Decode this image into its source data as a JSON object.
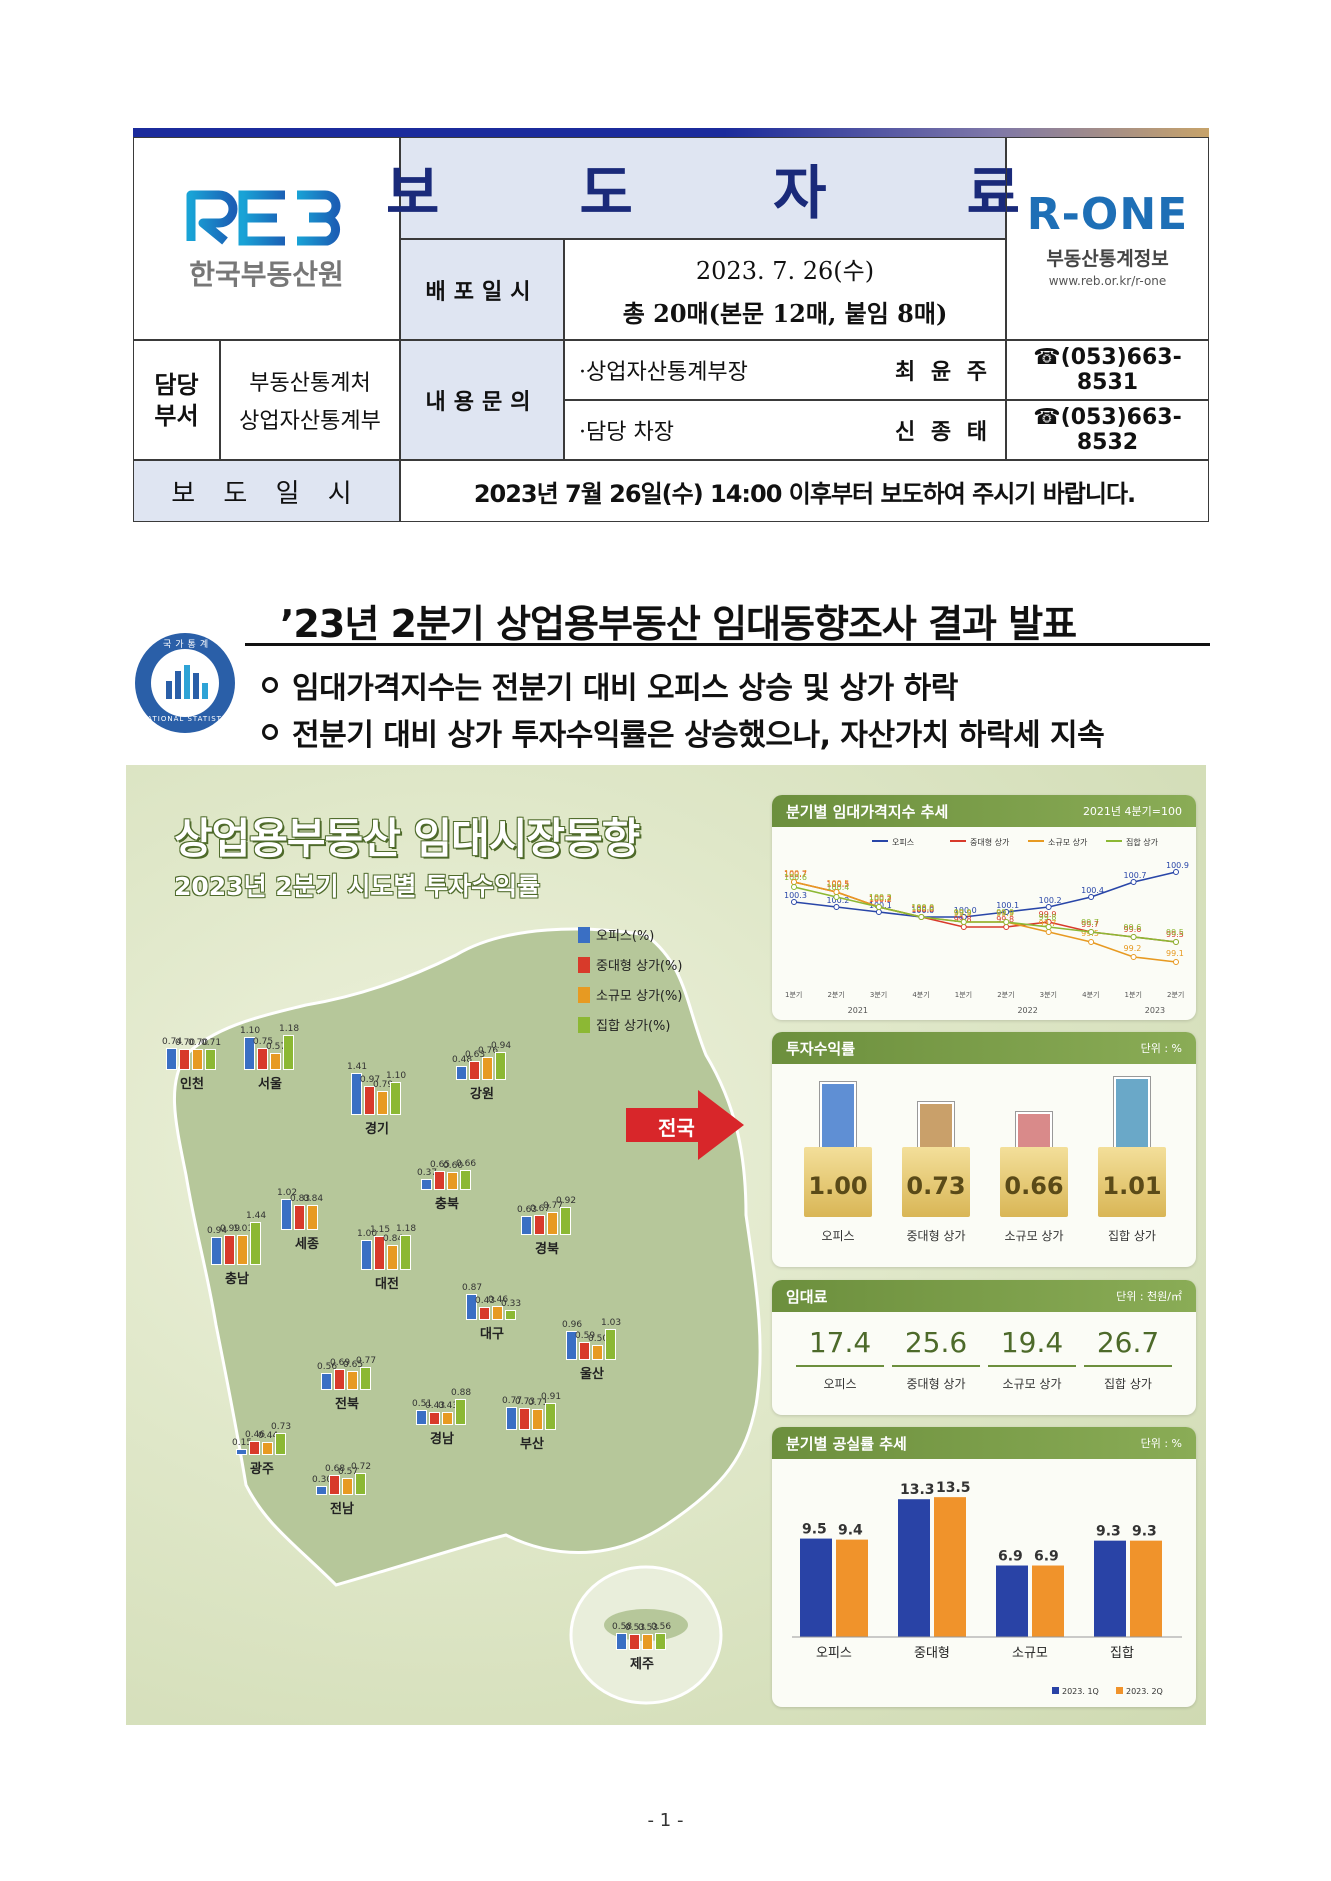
{
  "header": {
    "org_name": "한국부동산원",
    "logo_text": "REB",
    "doc_title": "보 도 자 료",
    "rone_brand": "R-ONE",
    "rone_name": "부동산통계정보",
    "rone_url": "www.reb.or.kr/r-one",
    "distribution_label": "배포일시",
    "distribution_date": "2023. 7. 26(수)",
    "distribution_pages": "총 20매(본문 12매, 붙임 8매)",
    "dept_label": "담당\n부서",
    "dept_name_1": "부동산통계처",
    "dept_name_2": "상업자산통계부",
    "inquiry_label": "내용문의",
    "contacts": [
      {
        "role": "·상업자산통계부장",
        "name": "최 윤 주",
        "phone": "☎(053)663-8531"
      },
      {
        "role": "·담당 차장",
        "name": "신 종 태",
        "phone": "☎(053)663-8532"
      }
    ],
    "release_label": "보 도 일 시",
    "release_text": "2023년 7월 26일(수) 14:00 이후부터 보도하여 주시기 바랍니다."
  },
  "headline": {
    "title": "’23년 2분기 상업용부동산 임대동향조사 결과 발표",
    "bullet_1": "임대가격지수는 전분기 대비 오피스 상승 및 상가 하락",
    "bullet_2": "전분기 대비 상가 투자수익률은 상승했으나, 자산가치 하락세 지속",
    "seal_text_top": "국가통계",
    "seal_text_bottom": "NATIONAL STATISTICS"
  },
  "infographic": {
    "main_title": "상업용부동산 임대시장동향",
    "sub_title": "2023년 2분기 시도별 투자수익률",
    "legend": [
      "오피스(%)",
      "중대형 상가(%)",
      "소규모 상가(%)",
      "집합 상가(%)"
    ],
    "national_label": "전국",
    "colors": {
      "office": "#3a6fc4",
      "midlarge": "#d83a2a",
      "small": "#e79a22",
      "collective": "#8cb834",
      "office_line": "#2946a8",
      "q1": "#2943a6",
      "q2": "#f0932b"
    },
    "regions": [
      {
        "name": "인천",
        "values": [
          0.74,
          0.7,
          0.7,
          0.71
        ]
      },
      {
        "name": "서울",
        "values": [
          1.1,
          0.75,
          0.57,
          1.18
        ]
      },
      {
        "name": "강원",
        "values": [
          0.48,
          0.63,
          0.76,
          0.94
        ]
      },
      {
        "name": "경기",
        "values": [
          1.41,
          0.97,
          0.79,
          1.1
        ]
      },
      {
        "name": "충북",
        "values": [
          0.37,
          0.65,
          0.6,
          0.66
        ]
      },
      {
        "name": "세종",
        "values": [
          1.02,
          0.83,
          0.84
        ]
      },
      {
        "name": "경북",
        "values": [
          0.63,
          0.67,
          0.77,
          0.92
        ]
      },
      {
        "name": "충남",
        "values": [
          0.94,
          0.99,
          1.01,
          1.44
        ]
      },
      {
        "name": "대전",
        "values": [
          1.0,
          1.15,
          0.84,
          1.18
        ]
      },
      {
        "name": "대구",
        "values": [
          0.87,
          0.43,
          0.46,
          0.33
        ]
      },
      {
        "name": "울산",
        "values": [
          0.96,
          0.59,
          0.5,
          1.03
        ]
      },
      {
        "name": "전북",
        "values": [
          0.56,
          0.69,
          0.65,
          0.77
        ]
      },
      {
        "name": "경남",
        "values": [
          0.51,
          0.43,
          0.43,
          0.88
        ]
      },
      {
        "name": "부산",
        "values": [
          0.77,
          0.73,
          0.71,
          0.91
        ]
      },
      {
        "name": "광주",
        "values": [
          0.15,
          0.46,
          0.44,
          0.73
        ]
      },
      {
        "name": "전남",
        "values": [
          0.3,
          0.68,
          0.57,
          0.72
        ]
      },
      {
        "name": "제주",
        "values": [
          0.58,
          0.53,
          0.53,
          0.56
        ]
      }
    ],
    "line_panel": {
      "title": "분기별 임대가격지수 추세",
      "note": "2021년 4분기=100",
      "series_labels": [
        "오피스",
        "중대형 상가",
        "소규모 상가",
        "집합 상가"
      ]
    },
    "return_panel": {
      "title": "투자수익률",
      "unit": "단위 : %",
      "categories": [
        "오피스",
        "중대형 상가",
        "소규모 상가",
        "집합 상가"
      ],
      "values": [
        "1.00",
        "0.73",
        "0.66",
        "1.01"
      ]
    },
    "rent_panel": {
      "title": "임대료",
      "unit": "단위 : 천원/㎡",
      "categories": [
        "오피스",
        "중대형 상가",
        "소규모 상가",
        "집합 상가"
      ],
      "values": [
        "17.4",
        "25.6",
        "19.4",
        "26.7"
      ]
    },
    "vacancy_panel": {
      "title": "분기별 공실률 추세",
      "unit": "단위 : %",
      "legend": [
        "2023. 1Q",
        "2023. 2Q"
      ]
    }
  },
  "chart_data": [
    {
      "type": "line",
      "title": "분기별 임대가격지수 추세",
      "note": "2021년 4분기=100",
      "x": [
        "1분기",
        "2분기",
        "3분기",
        "4분기",
        "1분기",
        "2분기",
        "3분기",
        "4분기",
        "1분기",
        "2분기"
      ],
      "x_groups": [
        "2021",
        "2022",
        "2023"
      ],
      "ylim": [
        98.8,
        101.0
      ],
      "series": [
        {
          "name": "오피스",
          "values": [
            100.3,
            100.2,
            100.1,
            100.0,
            100.0,
            100.1,
            100.2,
            100.4,
            100.7,
            100.9
          ]
        },
        {
          "name": "중대형 상가",
          "values": [
            100.7,
            100.5,
            100.2,
            100.0,
            99.8,
            99.8,
            99.9,
            99.7,
            99.6,
            99.5
          ]
        },
        {
          "name": "소규모 상가",
          "values": [
            100.7,
            100.5,
            100.2,
            100.0,
            99.9,
            99.9,
            99.7,
            99.5,
            99.2,
            99.1
          ]
        },
        {
          "name": "집합 상가",
          "values": [
            100.6,
            100.4,
            100.2,
            100.0,
            99.9,
            99.9,
            99.8,
            99.7,
            99.6,
            99.5
          ]
        }
      ]
    },
    {
      "type": "bar",
      "title": "분기별 공실률 추세",
      "categories": [
        "오피스",
        "중대형",
        "소규모",
        "집합"
      ],
      "series": [
        {
          "name": "2023. 1Q",
          "values": [
            9.5,
            13.3,
            6.9,
            9.3
          ]
        },
        {
          "name": "2023. 2Q",
          "values": [
            9.4,
            13.5,
            6.9,
            9.3
          ]
        }
      ],
      "ylim": [
        0,
        15
      ]
    }
  ],
  "footer": {
    "page_number": "- 1 -"
  }
}
